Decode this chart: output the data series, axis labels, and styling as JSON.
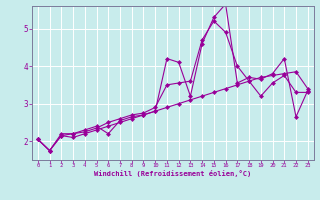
{
  "xlabel": "Windchill (Refroidissement éolien,°C)",
  "background_color": "#c8ecec",
  "line_color": "#990099",
  "grid_color": "#ffffff",
  "border_color": "#7b7b9b",
  "xlim": [
    -0.5,
    23.5
  ],
  "ylim": [
    1.5,
    5.6
  ],
  "yticks": [
    2,
    3,
    4,
    5
  ],
  "xticks": [
    0,
    1,
    2,
    3,
    4,
    5,
    6,
    7,
    8,
    9,
    10,
    11,
    12,
    13,
    14,
    15,
    16,
    17,
    18,
    19,
    20,
    21,
    22,
    23
  ],
  "series": [
    [
      2.05,
      1.75,
      2.2,
      2.2,
      2.3,
      2.4,
      2.2,
      2.55,
      2.65,
      2.7,
      2.8,
      4.2,
      4.1,
      3.2,
      4.6,
      5.3,
      5.65,
      3.55,
      3.7,
      3.65,
      3.8,
      4.2,
      2.65,
      3.35
    ],
    [
      2.05,
      1.75,
      2.15,
      2.2,
      2.25,
      2.35,
      2.5,
      2.6,
      2.7,
      2.75,
      2.9,
      3.5,
      3.55,
      3.6,
      4.7,
      5.2,
      4.9,
      4.0,
      3.6,
      3.2,
      3.55,
      3.75,
      3.3,
      3.3
    ],
    [
      2.05,
      1.75,
      2.15,
      2.1,
      2.2,
      2.3,
      2.4,
      2.5,
      2.6,
      2.7,
      2.8,
      2.9,
      3.0,
      3.1,
      3.2,
      3.3,
      3.4,
      3.5,
      3.6,
      3.7,
      3.75,
      3.8,
      3.85,
      3.4
    ]
  ]
}
